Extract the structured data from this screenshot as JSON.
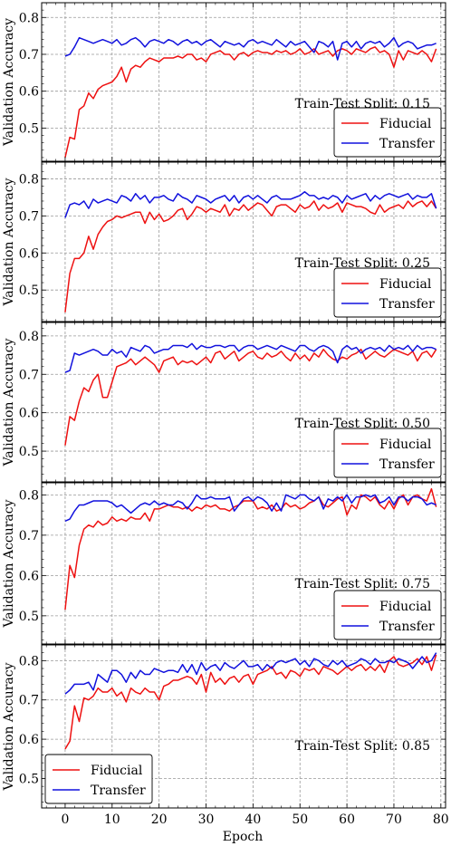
{
  "figure": {
    "shared_xlabel": "Epoch",
    "panel_ylabel": "Validation Accuracy"
  },
  "colors": {
    "fiducial": "#ee1111",
    "transfer": "#1111dd",
    "grid": "#999999"
  },
  "chart_data": [
    {
      "type": "line",
      "annotation": "Train-Test Split: 0.15",
      "ylabel": "Validation Accuracy",
      "xlabel": "",
      "xlim": [
        -5,
        81
      ],
      "ylim": [
        0.41,
        0.84
      ],
      "yticks": [
        0.5,
        0.6,
        0.7,
        0.8
      ],
      "xticks": [
        0,
        10,
        20,
        30,
        40,
        50,
        60,
        70,
        80
      ],
      "grid": true,
      "legend_position": "lower-right",
      "series": [
        {
          "name": "Fiducial",
          "color": "#ee1111",
          "values": [
            0.42,
            0.475,
            0.47,
            0.55,
            0.56,
            0.595,
            0.58,
            0.605,
            0.615,
            0.62,
            0.625,
            0.64,
            0.665,
            0.625,
            0.66,
            0.67,
            0.665,
            0.68,
            0.69,
            0.685,
            0.68,
            0.69,
            0.69,
            0.69,
            0.695,
            0.69,
            0.7,
            0.7,
            0.685,
            0.69,
            0.68,
            0.7,
            0.705,
            0.71,
            0.7,
            0.7,
            0.685,
            0.7,
            0.705,
            0.695,
            0.705,
            0.71,
            0.705,
            0.705,
            0.7,
            0.71,
            0.705,
            0.71,
            0.7,
            0.705,
            0.715,
            0.7,
            0.705,
            0.715,
            0.7,
            0.705,
            0.71,
            0.695,
            0.71,
            0.715,
            0.71,
            0.7,
            0.715,
            0.71,
            0.705,
            0.715,
            0.72,
            0.705,
            0.71,
            0.7,
            0.665,
            0.71,
            0.685,
            0.71,
            0.705,
            0.7,
            0.71,
            0.7,
            0.68,
            0.715
          ]
        },
        {
          "name": "Transfer",
          "color": "#1111dd",
          "values": [
            0.695,
            0.7,
            0.72,
            0.745,
            0.74,
            0.735,
            0.73,
            0.735,
            0.74,
            0.735,
            0.73,
            0.74,
            0.725,
            0.73,
            0.74,
            0.745,
            0.735,
            0.72,
            0.735,
            0.74,
            0.735,
            0.73,
            0.74,
            0.735,
            0.725,
            0.735,
            0.74,
            0.73,
            0.735,
            0.725,
            0.735,
            0.74,
            0.73,
            0.72,
            0.735,
            0.73,
            0.725,
            0.73,
            0.72,
            0.735,
            0.74,
            0.73,
            0.735,
            0.73,
            0.725,
            0.74,
            0.73,
            0.72,
            0.735,
            0.725,
            0.73,
            0.735,
            0.72,
            0.705,
            0.735,
            0.73,
            0.72,
            0.735,
            0.685,
            0.73,
            0.735,
            0.72,
            0.735,
            0.715,
            0.73,
            0.735,
            0.73,
            0.735,
            0.72,
            0.73,
            0.745,
            0.72,
            0.73,
            0.735,
            0.73,
            0.715,
            0.72,
            0.725,
            0.725,
            0.73
          ]
        }
      ]
    },
    {
      "type": "line",
      "annotation": "Train-Test Split: 0.25",
      "ylabel": "Validation Accuracy",
      "xlabel": "",
      "xlim": [
        -5,
        81
      ],
      "ylim": [
        0.415,
        0.845
      ],
      "yticks": [
        0.5,
        0.6,
        0.7,
        0.8
      ],
      "xticks": [
        0,
        10,
        20,
        30,
        40,
        50,
        60,
        70,
        80
      ],
      "grid": true,
      "legend_position": "lower-right",
      "series": [
        {
          "name": "Fiducial",
          "color": "#ee1111",
          "values": [
            0.44,
            0.545,
            0.585,
            0.585,
            0.6,
            0.645,
            0.61,
            0.65,
            0.67,
            0.685,
            0.69,
            0.7,
            0.695,
            0.7,
            0.705,
            0.71,
            0.71,
            0.68,
            0.71,
            0.69,
            0.705,
            0.685,
            0.69,
            0.7,
            0.715,
            0.72,
            0.69,
            0.705,
            0.725,
            0.72,
            0.71,
            0.72,
            0.715,
            0.71,
            0.73,
            0.7,
            0.72,
            0.715,
            0.73,
            0.715,
            0.725,
            0.735,
            0.73,
            0.715,
            0.7,
            0.725,
            0.73,
            0.73,
            0.72,
            0.71,
            0.73,
            0.72,
            0.725,
            0.74,
            0.715,
            0.73,
            0.72,
            0.725,
            0.735,
            0.71,
            0.735,
            0.73,
            0.725,
            0.725,
            0.72,
            0.71,
            0.705,
            0.73,
            0.71,
            0.72,
            0.725,
            0.73,
            0.72,
            0.74,
            0.725,
            0.735,
            0.74,
            0.725,
            0.74,
            0.72
          ]
        },
        {
          "name": "Transfer",
          "color": "#1111dd",
          "values": [
            0.695,
            0.73,
            0.735,
            0.73,
            0.74,
            0.72,
            0.745,
            0.735,
            0.74,
            0.745,
            0.74,
            0.735,
            0.755,
            0.75,
            0.74,
            0.76,
            0.745,
            0.755,
            0.735,
            0.75,
            0.75,
            0.755,
            0.745,
            0.74,
            0.76,
            0.75,
            0.745,
            0.735,
            0.755,
            0.75,
            0.745,
            0.735,
            0.745,
            0.75,
            0.755,
            0.74,
            0.755,
            0.735,
            0.75,
            0.755,
            0.745,
            0.755,
            0.745,
            0.735,
            0.75,
            0.755,
            0.745,
            0.745,
            0.745,
            0.75,
            0.755,
            0.765,
            0.755,
            0.755,
            0.745,
            0.75,
            0.745,
            0.755,
            0.75,
            0.735,
            0.755,
            0.745,
            0.75,
            0.755,
            0.76,
            0.74,
            0.755,
            0.745,
            0.755,
            0.76,
            0.755,
            0.75,
            0.755,
            0.76,
            0.745,
            0.755,
            0.75,
            0.75,
            0.76,
            0.72
          ]
        }
      ]
    },
    {
      "type": "line",
      "annotation": "Train-Test Split: 0.50",
      "ylabel": "Validation Accuracy",
      "xlabel": "",
      "xlim": [
        -5,
        81
      ],
      "ylim": [
        0.42,
        0.835
      ],
      "yticks": [
        0.5,
        0.6,
        0.7,
        0.8
      ],
      "xticks": [
        0,
        10,
        20,
        30,
        40,
        50,
        60,
        70,
        80
      ],
      "grid": true,
      "legend_position": "lower-right",
      "series": [
        {
          "name": "Fiducial",
          "color": "#ee1111",
          "values": [
            0.515,
            0.59,
            0.58,
            0.63,
            0.665,
            0.655,
            0.685,
            0.7,
            0.64,
            0.64,
            0.68,
            0.72,
            0.725,
            0.73,
            0.74,
            0.725,
            0.735,
            0.745,
            0.735,
            0.725,
            0.705,
            0.735,
            0.74,
            0.745,
            0.725,
            0.735,
            0.73,
            0.735,
            0.725,
            0.735,
            0.745,
            0.73,
            0.755,
            0.76,
            0.74,
            0.75,
            0.76,
            0.735,
            0.745,
            0.755,
            0.76,
            0.745,
            0.74,
            0.755,
            0.745,
            0.75,
            0.76,
            0.745,
            0.735,
            0.755,
            0.74,
            0.75,
            0.735,
            0.755,
            0.745,
            0.765,
            0.75,
            0.74,
            0.735,
            0.745,
            0.74,
            0.75,
            0.755,
            0.765,
            0.74,
            0.75,
            0.76,
            0.75,
            0.745,
            0.755,
            0.765,
            0.76,
            0.755,
            0.75,
            0.76,
            0.735,
            0.755,
            0.76,
            0.745,
            0.765
          ]
        },
        {
          "name": "Transfer",
          "color": "#1111dd",
          "values": [
            0.705,
            0.71,
            0.755,
            0.75,
            0.755,
            0.76,
            0.765,
            0.76,
            0.75,
            0.75,
            0.765,
            0.755,
            0.76,
            0.745,
            0.77,
            0.765,
            0.76,
            0.775,
            0.77,
            0.755,
            0.76,
            0.765,
            0.765,
            0.775,
            0.775,
            0.775,
            0.77,
            0.78,
            0.765,
            0.775,
            0.77,
            0.77,
            0.775,
            0.775,
            0.77,
            0.775,
            0.775,
            0.76,
            0.77,
            0.775,
            0.775,
            0.765,
            0.77,
            0.775,
            0.77,
            0.765,
            0.775,
            0.77,
            0.765,
            0.76,
            0.775,
            0.775,
            0.765,
            0.76,
            0.77,
            0.775,
            0.77,
            0.76,
            0.73,
            0.765,
            0.775,
            0.765,
            0.77,
            0.755,
            0.765,
            0.77,
            0.765,
            0.77,
            0.76,
            0.775,
            0.765,
            0.77,
            0.765,
            0.775,
            0.76,
            0.775,
            0.765,
            0.77,
            0.77,
            0.765
          ]
        }
      ]
    },
    {
      "type": "line",
      "annotation": "Train-Test Split: 0.75",
      "ylabel": "Validation Accuracy",
      "xlabel": "",
      "xlim": [
        -5,
        81
      ],
      "ylim": [
        0.43,
        0.83
      ],
      "yticks": [
        0.5,
        0.6,
        0.7,
        0.8
      ],
      "xticks": [
        0,
        10,
        20,
        30,
        40,
        50,
        60,
        70,
        80
      ],
      "grid": true,
      "legend_position": "lower-right",
      "series": [
        {
          "name": "Fiducial",
          "color": "#ee1111",
          "values": [
            0.515,
            0.625,
            0.595,
            0.675,
            0.715,
            0.725,
            0.72,
            0.735,
            0.725,
            0.73,
            0.745,
            0.735,
            0.74,
            0.735,
            0.745,
            0.74,
            0.74,
            0.755,
            0.735,
            0.765,
            0.765,
            0.77,
            0.775,
            0.77,
            0.77,
            0.765,
            0.77,
            0.76,
            0.77,
            0.765,
            0.775,
            0.77,
            0.775,
            0.765,
            0.765,
            0.76,
            0.77,
            0.775,
            0.785,
            0.785,
            0.785,
            0.765,
            0.77,
            0.765,
            0.775,
            0.76,
            0.765,
            0.78,
            0.77,
            0.775,
            0.765,
            0.77,
            0.78,
            0.785,
            0.795,
            0.775,
            0.77,
            0.78,
            0.79,
            0.795,
            0.75,
            0.775,
            0.765,
            0.8,
            0.795,
            0.785,
            0.795,
            0.775,
            0.765,
            0.785,
            0.765,
            0.79,
            0.8,
            0.775,
            0.795,
            0.8,
            0.79,
            0.785,
            0.815,
            0.77
          ]
        },
        {
          "name": "Transfer",
          "color": "#1111dd",
          "values": [
            0.735,
            0.74,
            0.76,
            0.775,
            0.775,
            0.78,
            0.785,
            0.785,
            0.785,
            0.785,
            0.78,
            0.77,
            0.775,
            0.765,
            0.755,
            0.765,
            0.775,
            0.78,
            0.775,
            0.785,
            0.775,
            0.78,
            0.775,
            0.775,
            0.785,
            0.78,
            0.765,
            0.78,
            0.8,
            0.79,
            0.79,
            0.795,
            0.79,
            0.79,
            0.79,
            0.795,
            0.76,
            0.775,
            0.79,
            0.795,
            0.785,
            0.795,
            0.79,
            0.78,
            0.76,
            0.78,
            0.76,
            0.8,
            0.795,
            0.79,
            0.8,
            0.8,
            0.79,
            0.785,
            0.795,
            0.765,
            0.79,
            0.785,
            0.795,
            0.785,
            0.8,
            0.78,
            0.795,
            0.795,
            0.8,
            0.795,
            0.8,
            0.78,
            0.785,
            0.795,
            0.775,
            0.795,
            0.795,
            0.785,
            0.795,
            0.795,
            0.79,
            0.775,
            0.78,
            0.775
          ]
        }
      ]
    },
    {
      "type": "line",
      "annotation": "Train-Test Split: 0.85",
      "ylabel": "Validation Accuracy",
      "xlabel": "Epoch",
      "xlim": [
        -5,
        81
      ],
      "ylim": [
        0.425,
        0.84
      ],
      "yticks": [
        0.5,
        0.6,
        0.7,
        0.8
      ],
      "xticks": [
        0,
        10,
        20,
        30,
        40,
        50,
        60,
        70,
        80
      ],
      "grid": true,
      "legend_position": "lower-left",
      "series": [
        {
          "name": "Fiducial",
          "color": "#ee1111",
          "values": [
            0.575,
            0.595,
            0.685,
            0.645,
            0.705,
            0.7,
            0.71,
            0.73,
            0.72,
            0.72,
            0.73,
            0.71,
            0.72,
            0.695,
            0.73,
            0.72,
            0.715,
            0.73,
            0.72,
            0.72,
            0.7,
            0.735,
            0.74,
            0.75,
            0.75,
            0.755,
            0.76,
            0.755,
            0.74,
            0.765,
            0.72,
            0.77,
            0.745,
            0.755,
            0.74,
            0.755,
            0.76,
            0.745,
            0.76,
            0.765,
            0.74,
            0.765,
            0.77,
            0.775,
            0.785,
            0.765,
            0.77,
            0.755,
            0.775,
            0.77,
            0.76,
            0.78,
            0.775,
            0.78,
            0.765,
            0.785,
            0.78,
            0.775,
            0.765,
            0.775,
            0.785,
            0.775,
            0.785,
            0.79,
            0.775,
            0.785,
            0.775,
            0.79,
            0.77,
            0.8,
            0.81,
            0.79,
            0.785,
            0.79,
            0.795,
            0.805,
            0.79,
            0.81,
            0.775,
            0.815
          ]
        },
        {
          "name": "Transfer",
          "color": "#1111dd",
          "values": [
            0.715,
            0.725,
            0.74,
            0.74,
            0.74,
            0.745,
            0.725,
            0.765,
            0.755,
            0.745,
            0.775,
            0.775,
            0.765,
            0.745,
            0.77,
            0.755,
            0.775,
            0.765,
            0.765,
            0.78,
            0.775,
            0.77,
            0.775,
            0.775,
            0.77,
            0.79,
            0.77,
            0.79,
            0.765,
            0.795,
            0.775,
            0.785,
            0.79,
            0.775,
            0.795,
            0.785,
            0.78,
            0.79,
            0.8,
            0.785,
            0.785,
            0.79,
            0.775,
            0.79,
            0.78,
            0.795,
            0.8,
            0.795,
            0.8,
            0.805,
            0.79,
            0.8,
            0.785,
            0.805,
            0.8,
            0.79,
            0.785,
            0.8,
            0.79,
            0.8,
            0.785,
            0.79,
            0.795,
            0.805,
            0.8,
            0.79,
            0.805,
            0.795,
            0.795,
            0.8,
            0.795,
            0.805,
            0.8,
            0.795,
            0.78,
            0.795,
            0.81,
            0.795,
            0.8,
            0.82
          ]
        }
      ]
    }
  ]
}
